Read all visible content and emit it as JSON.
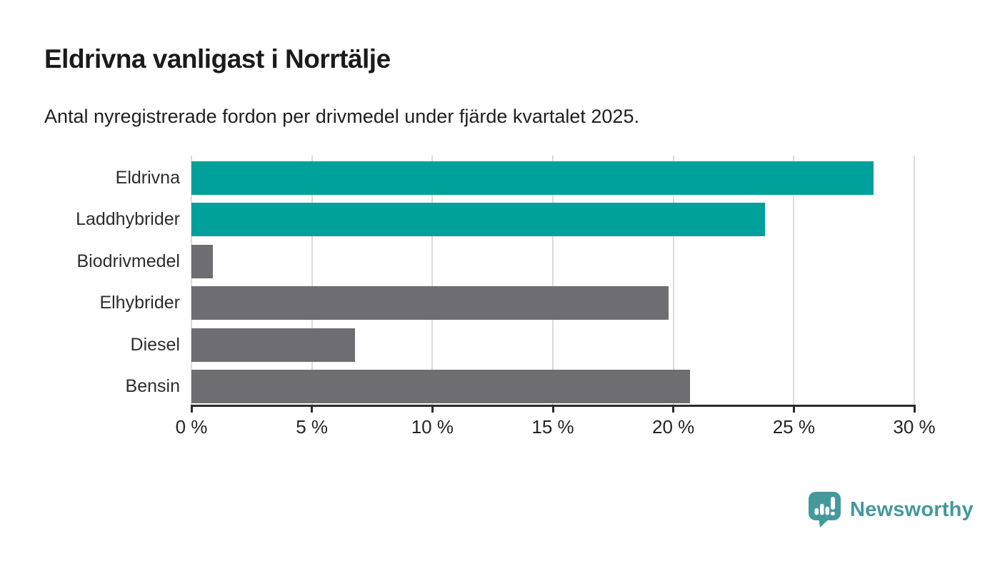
{
  "header": {
    "title": "Eldrivna vanligast i Norrtälje",
    "subtitle": "Antal nyregistrerade fordon per drivmedel under fjärde kvartalet 2025."
  },
  "chart_data": {
    "type": "bar",
    "orientation": "horizontal",
    "title": "Eldrivna vanligast i Norrtälje",
    "subtitle": "Antal nyregistrerade fordon per drivmedel under fjärde kvartalet 2025.",
    "categories": [
      "Eldrivna",
      "Laddhybrider",
      "Biodrivmedel",
      "Elhybrider",
      "Diesel",
      "Bensin"
    ],
    "values": [
      28.3,
      23.8,
      0.9,
      19.8,
      6.8,
      20.7
    ],
    "value_unit": "%",
    "bar_colors": [
      "#00A19A",
      "#00A19A",
      "#6E6E72",
      "#6E6E72",
      "#6E6E72",
      "#6E6E72"
    ],
    "xlabel": "",
    "ylabel": "",
    "xlim": [
      0,
      30
    ],
    "x_ticks": [
      {
        "value": 0,
        "label": "0 %"
      },
      {
        "value": 5,
        "label": "5 %"
      },
      {
        "value": 10,
        "label": "10 %"
      },
      {
        "value": 15,
        "label": "15 %"
      },
      {
        "value": 20,
        "label": "20 %"
      },
      {
        "value": 25,
        "label": "25 %"
      },
      {
        "value": 30,
        "label": "30 %"
      }
    ],
    "grid": "vertical-light",
    "legend": "none"
  },
  "colors": {
    "highlight_bar": "#00A19A",
    "default_bar": "#6E6E72",
    "gridline": "#DBDBDB",
    "axis": "#2B2B2B",
    "title_text": "#1B1B1B",
    "logo_teal": "#44999C"
  },
  "footer": {
    "logo_text": "Newsworthy"
  }
}
